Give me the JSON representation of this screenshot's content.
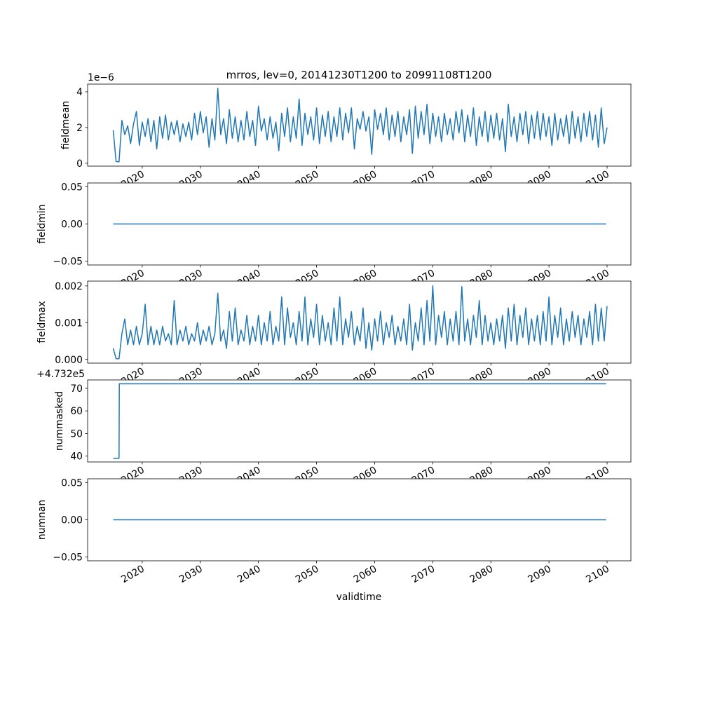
{
  "chart_data": {
    "type": "line",
    "title": "mrros, lev=0, 20141230T1200 to 20991108T1200",
    "xlabel": "validtime",
    "x_ticks": [
      "2020",
      "2030",
      "2040",
      "2050",
      "2060",
      "2070",
      "2080",
      "2090",
      "2100"
    ],
    "x_tick_values": [
      2020,
      2030,
      2040,
      2050,
      2060,
      2070,
      2080,
      2090,
      2100
    ],
    "xlim": [
      2010.6,
      2104.1
    ],
    "line_color": "#1f77b4",
    "panels": [
      {
        "ylabel": "fieldmean",
        "offset_text": "1e−6",
        "ylim": [
          -0.16,
          4.43
        ],
        "y_ticks": [
          "0",
          "2",
          "4"
        ],
        "y_tick_values": [
          0,
          2,
          4
        ],
        "x_start": 2015.0,
        "x_step": 0.5,
        "values": [
          1.85,
          0.1,
          0.08,
          2.4,
          1.6,
          2.1,
          1.1,
          2.2,
          2.9,
          1.0,
          2.3,
          1.5,
          2.5,
          1.2,
          2.4,
          0.8,
          2.6,
          1.4,
          2.7,
          1.3,
          2.3,
          1.6,
          2.4,
          1.2,
          2.2,
          1.5,
          2.3,
          1.3,
          2.8,
          1.6,
          2.9,
          1.7,
          2.6,
          0.9,
          2.5,
          1.3,
          4.2,
          1.6,
          2.5,
          1.1,
          3.0,
          1.4,
          2.6,
          1.2,
          2.4,
          1.3,
          2.9,
          1.5,
          2.4,
          1.0,
          3.2,
          1.8,
          2.5,
          1.3,
          2.6,
          1.4,
          2.3,
          0.7,
          2.8,
          1.5,
          3.1,
          1.2,
          2.6,
          1.4,
          3.6,
          1.0,
          2.8,
          1.6,
          2.6,
          1.3,
          3.1,
          1.1,
          2.7,
          1.5,
          2.9,
          1.2,
          2.6,
          1.5,
          3.1,
          1.3,
          2.8,
          1.7,
          3.1,
          0.8,
          2.5,
          1.9,
          2.9,
          1.8,
          2.6,
          0.5,
          3.0,
          1.9,
          2.8,
          1.6,
          3.1,
          1.3,
          2.7,
          1.5,
          2.9,
          1.2,
          2.6,
          1.6,
          3.0,
          0.55,
          3.2,
          1.4,
          2.9,
          1.6,
          3.3,
          1.1,
          2.8,
          1.5,
          2.6,
          1.2,
          2.8,
          1.6,
          2.5,
          1.3,
          2.9,
          1.7,
          3.0,
          1.2,
          2.7,
          1.5,
          3.1,
          1.0,
          2.6,
          1.5,
          2.9,
          1.2,
          2.7,
          1.4,
          2.8,
          1.3,
          2.5,
          0.65,
          3.3,
          1.5,
          2.6,
          1.2,
          2.8,
          1.6,
          2.9,
          1.1,
          2.7,
          1.4,
          2.9,
          1.3,
          2.8,
          1.5,
          2.6,
          1.0,
          2.8,
          1.3,
          2.5,
          1.5,
          2.7,
          1.1,
          2.9,
          1.4,
          2.6,
          1.2,
          2.8,
          1.5,
          2.9,
          1.3,
          2.7,
          0.9,
          3.1,
          1.1,
          2.0
        ]
      },
      {
        "ylabel": "fieldmin",
        "offset_text": "",
        "ylim": [
          -0.055,
          0.055
        ],
        "y_ticks": [
          "−0.05",
          "0.00",
          "0.05"
        ],
        "y_tick_values": [
          -0.05,
          0,
          0.05
        ],
        "x": [
          2015.0,
          2099.85
        ],
        "values": [
          0,
          0
        ]
      },
      {
        "ylabel": "fieldmax",
        "offset_text": "",
        "ylim": [
          -0.0001,
          0.00213
        ],
        "y_ticks": [
          "0.000",
          "0.001",
          "0.002"
        ],
        "y_tick_values": [
          0,
          0.001,
          0.002
        ],
        "x_start": 2015.0,
        "x_step": 0.5,
        "value_multiplier": 0.001,
        "values": [
          0.3,
          0.02,
          0.02,
          0.7,
          1.1,
          0.4,
          0.8,
          0.4,
          0.9,
          0.4,
          0.7,
          1.5,
          0.4,
          0.9,
          0.4,
          0.8,
          0.4,
          0.9,
          0.5,
          0.7,
          0.4,
          1.6,
          0.4,
          0.8,
          0.5,
          0.9,
          0.4,
          0.7,
          0.5,
          1.0,
          0.4,
          0.8,
          0.5,
          0.9,
          0.4,
          0.7,
          1.8,
          0.5,
          0.8,
          0.3,
          1.3,
          0.5,
          1.4,
          0.4,
          0.8,
          0.5,
          1.2,
          0.4,
          0.9,
          0.5,
          1.2,
          0.4,
          1.0,
          0.5,
          1.3,
          0.4,
          0.9,
          0.5,
          1.7,
          0.4,
          1.4,
          0.6,
          1.0,
          0.4,
          1.3,
          0.5,
          1.7,
          0.4,
          1.1,
          0.6,
          1.5,
          0.4,
          1.2,
          0.5,
          1.0,
          0.4,
          1.4,
          0.5,
          1.7,
          0.4,
          1.1,
          0.6,
          1.3,
          0.4,
          0.9,
          0.5,
          1.4,
          0.3,
          1.0,
          0.25,
          1.1,
          0.5,
          1.3,
          0.4,
          1.0,
          0.6,
          1.2,
          0.4,
          0.9,
          0.5,
          1.1,
          0.4,
          1.5,
          0.25,
          1.0,
          0.5,
          1.4,
          0.4,
          1.6,
          0.5,
          2.0,
          0.4,
          1.2,
          0.6,
          1.3,
          0.4,
          1.1,
          0.5,
          1.3,
          0.4,
          1.98,
          0.5,
          1.1,
          0.4,
          1.2,
          0.6,
          1.6,
          0.4,
          1.2,
          0.5,
          1.0,
          0.4,
          1.1,
          0.5,
          1.2,
          0.3,
          1.4,
          0.5,
          1.5,
          0.4,
          1.2,
          0.6,
          1.4,
          0.4,
          1.1,
          0.5,
          1.2,
          0.4,
          1.3,
          0.5,
          1.7,
          0.4,
          1.2,
          0.6,
          1.4,
          0.4,
          1.1,
          0.5,
          1.3,
          0.6,
          1.2,
          0.4,
          1.1,
          0.6,
          1.3,
          0.4,
          1.5,
          0.5,
          1.4,
          0.5,
          1.45
        ]
      },
      {
        "ylabel": "nummasked",
        "offset_text": "+4.732e5",
        "ylim": [
          37.4,
          73.7
        ],
        "y_ticks": [
          "40",
          "50",
          "60",
          "70"
        ],
        "y_tick_values": [
          40,
          50,
          60,
          70
        ],
        "x": [
          2015.0,
          2016.0,
          2016.05,
          2099.85
        ],
        "values": [
          39,
          39,
          72,
          72
        ]
      },
      {
        "ylabel": "numnan",
        "offset_text": "",
        "ylim": [
          -0.055,
          0.055
        ],
        "y_ticks": [
          "−0.05",
          "0.00",
          "0.05"
        ],
        "y_tick_values": [
          -0.05,
          0,
          0.05
        ],
        "x": [
          2015.0,
          2099.85
        ],
        "values": [
          0,
          0
        ]
      }
    ]
  }
}
